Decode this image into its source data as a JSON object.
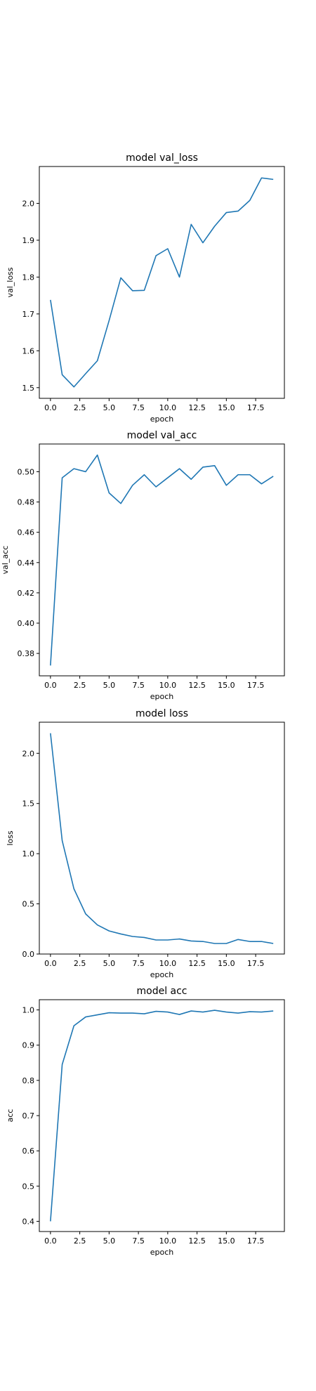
{
  "figure": {
    "line_color": "#1f77b4",
    "frame_color": "#000000",
    "background": "#ffffff"
  },
  "chart_data": [
    {
      "type": "line",
      "title": "model val_loss",
      "xlabel": "epoch",
      "ylabel": "val_loss",
      "grid": false,
      "xlim": [
        -0.95,
        19.95
      ],
      "ylim": [
        1.471,
        2.1
      ],
      "xticks": [
        0.0,
        2.5,
        5.0,
        7.5,
        10.0,
        12.5,
        15.0,
        17.5
      ],
      "xtick_labels": [
        "0.0",
        "2.5",
        "5.0",
        "7.5",
        "10.0",
        "12.5",
        "15.0",
        "17.5"
      ],
      "yticks": [
        1.5,
        1.6,
        1.7,
        1.8,
        1.9,
        2.0
      ],
      "ytick_labels": [
        "1.5",
        "1.6",
        "1.7",
        "1.8",
        "1.9",
        "2.0"
      ],
      "x": [
        0,
        1,
        2,
        3,
        4,
        5,
        6,
        7,
        8,
        9,
        10,
        11,
        12,
        13,
        14,
        15,
        16,
        17,
        18,
        19
      ],
      "series": [
        {
          "values": [
            1.738,
            1.535,
            1.502,
            1.538,
            1.573,
            1.682,
            1.798,
            1.763,
            1.764,
            1.858,
            1.877,
            1.8,
            1.943,
            1.893,
            1.938,
            1.975,
            1.979,
            2.008,
            2.069,
            2.065
          ]
        }
      ]
    },
    {
      "type": "line",
      "title": "model val_acc",
      "xlabel": "epoch",
      "ylabel": "val_acc",
      "grid": false,
      "xlim": [
        -0.95,
        19.95
      ],
      "ylim": [
        0.3652,
        0.5183
      ],
      "xticks": [
        0.0,
        2.5,
        5.0,
        7.5,
        10.0,
        12.5,
        15.0,
        17.5
      ],
      "xtick_labels": [
        "0.0",
        "2.5",
        "5.0",
        "7.5",
        "10.0",
        "12.5",
        "15.0",
        "17.5"
      ],
      "yticks": [
        0.38,
        0.4,
        0.42,
        0.44,
        0.46,
        0.48,
        0.5
      ],
      "ytick_labels": [
        "0.38",
        "0.40",
        "0.42",
        "0.44",
        "0.46",
        "0.48",
        "0.50"
      ],
      "x": [
        0,
        1,
        2,
        3,
        4,
        5,
        6,
        7,
        8,
        9,
        10,
        11,
        12,
        13,
        14,
        15,
        16,
        17,
        18,
        19
      ],
      "series": [
        {
          "values": [
            0.372,
            0.496,
            0.502,
            0.5,
            0.511,
            0.486,
            0.479,
            0.491,
            0.498,
            0.49,
            0.496,
            0.502,
            0.495,
            0.503,
            0.504,
            0.491,
            0.498,
            0.498,
            0.492,
            0.497
          ]
        }
      ]
    },
    {
      "type": "line",
      "title": "model loss",
      "xlabel": "epoch",
      "ylabel": "loss",
      "grid": false,
      "xlim": [
        -0.95,
        19.95
      ],
      "ylim": [
        0.0,
        2.31
      ],
      "xticks": [
        0.0,
        2.5,
        5.0,
        7.5,
        10.0,
        12.5,
        15.0,
        17.5
      ],
      "xtick_labels": [
        "0.0",
        "2.5",
        "5.0",
        "7.5",
        "10.0",
        "12.5",
        "15.0",
        "17.5"
      ],
      "yticks": [
        0.0,
        0.5,
        1.0,
        1.5,
        2.0
      ],
      "ytick_labels": [
        "0.0",
        "0.5",
        "1.0",
        "1.5",
        "2.0"
      ],
      "x": [
        0,
        1,
        2,
        3,
        4,
        5,
        6,
        7,
        8,
        9,
        10,
        11,
        12,
        13,
        14,
        15,
        16,
        17,
        18,
        19
      ],
      "series": [
        {
          "values": [
            2.2,
            1.13,
            0.65,
            0.4,
            0.29,
            0.23,
            0.2,
            0.175,
            0.165,
            0.14,
            0.14,
            0.15,
            0.13,
            0.125,
            0.105,
            0.105,
            0.145,
            0.125,
            0.125,
            0.105
          ]
        }
      ]
    },
    {
      "type": "line",
      "title": "model acc",
      "xlabel": "epoch",
      "ylabel": "acc",
      "grid": false,
      "xlim": [
        -0.95,
        19.95
      ],
      "ylim": [
        0.371,
        1.029
      ],
      "xticks": [
        0.0,
        2.5,
        5.0,
        7.5,
        10.0,
        12.5,
        15.0,
        17.5
      ],
      "xtick_labels": [
        "0.0",
        "2.5",
        "5.0",
        "7.5",
        "10.0",
        "12.5",
        "15.0",
        "17.5"
      ],
      "yticks": [
        0.4,
        0.5,
        0.6,
        0.7,
        0.8,
        0.9,
        1.0
      ],
      "ytick_labels": [
        "0.4",
        "0.5",
        "0.6",
        "0.7",
        "0.8",
        "0.9",
        "1.0"
      ],
      "x": [
        0,
        1,
        2,
        3,
        4,
        5,
        6,
        7,
        8,
        9,
        10,
        11,
        12,
        13,
        14,
        15,
        16,
        17,
        18,
        19
      ],
      "series": [
        {
          "values": [
            0.4,
            0.845,
            0.955,
            0.98,
            0.986,
            0.992,
            0.991,
            0.991,
            0.989,
            0.996,
            0.994,
            0.987,
            0.997,
            0.994,
            0.999,
            0.994,
            0.991,
            0.995,
            0.994,
            0.997
          ]
        }
      ]
    }
  ]
}
